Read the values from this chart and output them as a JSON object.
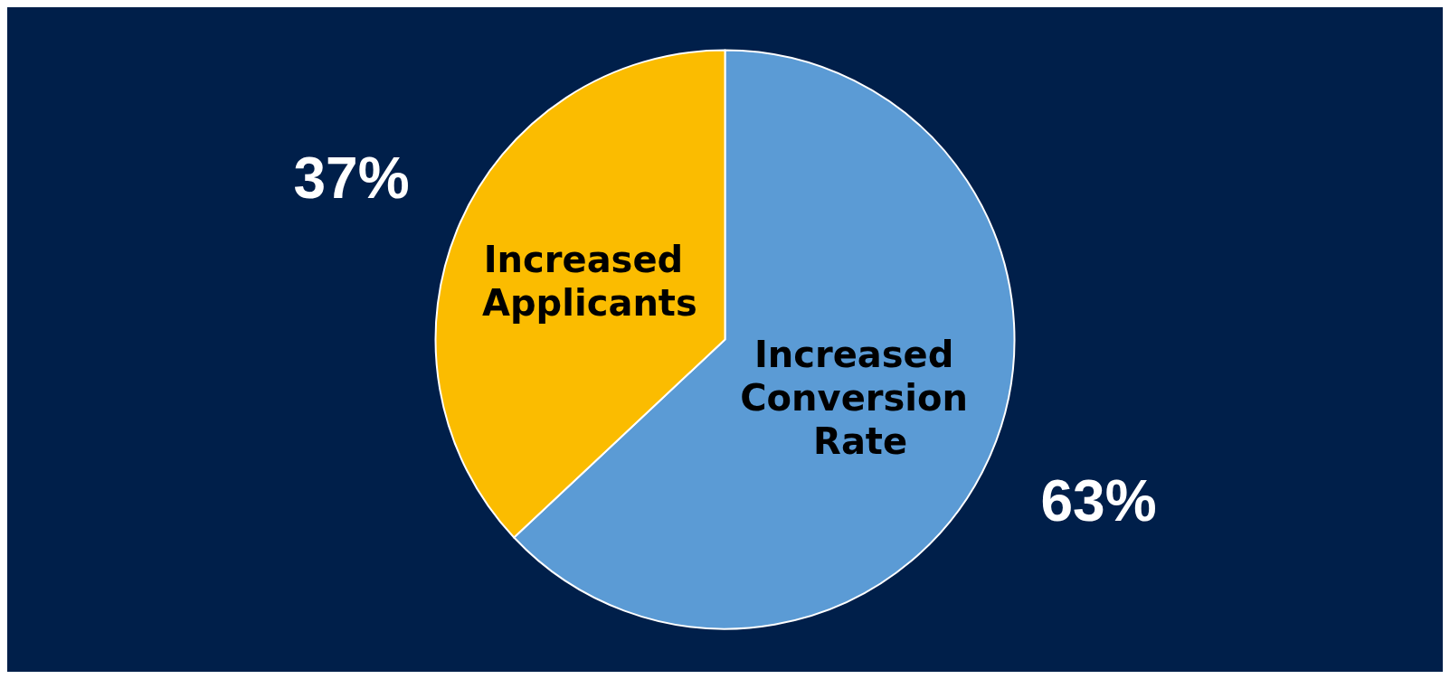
{
  "chart_data": {
    "type": "pie",
    "categories": [
      "Increased Conversion Rate",
      "Increased Applicants"
    ],
    "values": [
      63,
      37
    ],
    "colors": [
      "#5b9bd5",
      "#fbbc00"
    ],
    "value_labels": [
      "63%",
      "37%"
    ],
    "legend": false
  }
}
